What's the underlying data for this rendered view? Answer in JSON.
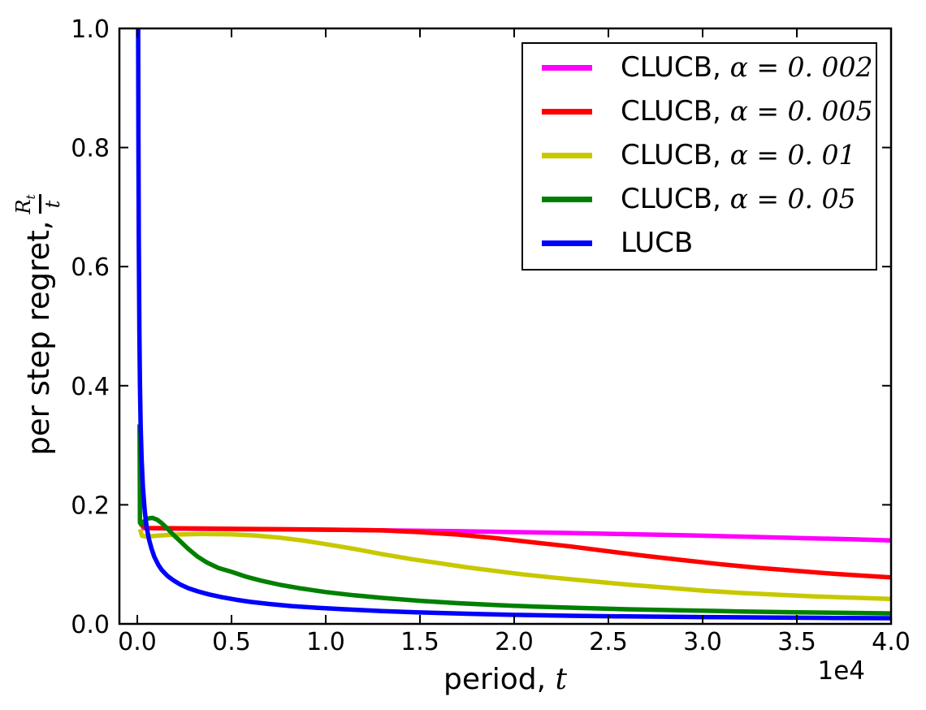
{
  "figure": {
    "background": "#ffffff",
    "frame_color": "#000000"
  },
  "chart_data": {
    "type": "line",
    "title": "",
    "xlabel": {
      "plain": "period, ",
      "math": "t"
    },
    "ylabel": {
      "plain": "per step regret, ",
      "frac_num": "R",
      "frac_num_sub": "t",
      "frac_den": "t"
    },
    "x_offset_text": "1e4",
    "x_units": "1e4",
    "xlim": [
      -0.095,
      4.0
    ],
    "ylim": [
      0,
      1
    ],
    "grid": false,
    "x_ticks": {
      "values": [
        0.0,
        0.5,
        1.0,
        1.5,
        2.0,
        2.5,
        3.0,
        3.5,
        4.0
      ],
      "labels": [
        "0.0",
        "0.5",
        "1.0",
        "1.5",
        "2.0",
        "2.5",
        "3.0",
        "3.5",
        "4.0"
      ]
    },
    "y_ticks": {
      "values": [
        0.0,
        0.2,
        0.4,
        0.6,
        0.8,
        1.0
      ],
      "labels": [
        "0.0",
        "0.2",
        "0.4",
        "0.6",
        "0.8",
        "1.0"
      ]
    },
    "legend": {
      "position": "upper right",
      "border_color": "#000000"
    },
    "series": [
      {
        "label_plain": "CLUCB, ",
        "label_math": "α = 0. 002",
        "color": "#ff00ff",
        "points": [
          [
            0.02,
            0.161
          ],
          [
            0.2,
            0.16
          ],
          [
            0.5,
            0.159
          ],
          [
            0.8,
            0.1585
          ],
          [
            1.1,
            0.1578
          ],
          [
            1.4,
            0.1568
          ],
          [
            1.7,
            0.1556
          ],
          [
            2.0,
            0.1542
          ],
          [
            2.3,
            0.1526
          ],
          [
            2.6,
            0.1508
          ],
          [
            2.9,
            0.1488
          ],
          [
            3.2,
            0.1466
          ],
          [
            3.5,
            0.1443
          ],
          [
            3.8,
            0.142
          ],
          [
            4.0,
            0.1403
          ]
        ]
      },
      {
        "label_plain": "CLUCB, ",
        "label_math": "α = 0. 005",
        "color": "#ff0000",
        "points": [
          [
            0.02,
            0.166
          ],
          [
            0.05,
            0.161
          ],
          [
            0.4,
            0.16
          ],
          [
            0.8,
            0.159
          ],
          [
            1.1,
            0.158
          ],
          [
            1.3,
            0.157
          ],
          [
            1.5,
            0.154
          ],
          [
            1.7,
            0.15
          ],
          [
            1.9,
            0.144
          ],
          [
            2.1,
            0.137
          ],
          [
            2.3,
            0.13
          ],
          [
            2.5,
            0.122
          ],
          [
            2.7,
            0.114
          ],
          [
            2.9,
            0.107
          ],
          [
            3.1,
            0.1
          ],
          [
            3.3,
            0.094
          ],
          [
            3.5,
            0.089
          ],
          [
            3.7,
            0.084
          ],
          [
            3.85,
            0.081
          ],
          [
            4.0,
            0.078
          ]
        ]
      },
      {
        "label_plain": "CLUCB, ",
        "label_math": "α = 0. 01",
        "color": "#c8c800",
        "points": [
          [
            0.015,
            0.159
          ],
          [
            0.025,
            0.148
          ],
          [
            0.05,
            0.1465
          ],
          [
            0.1,
            0.148
          ],
          [
            0.2,
            0.15
          ],
          [
            0.35,
            0.151
          ],
          [
            0.5,
            0.1505
          ],
          [
            0.62,
            0.1485
          ],
          [
            0.75,
            0.145
          ],
          [
            0.88,
            0.14
          ],
          [
            1.0,
            0.134
          ],
          [
            1.15,
            0.126
          ],
          [
            1.3,
            0.117
          ],
          [
            1.45,
            0.109
          ],
          [
            1.6,
            0.102
          ],
          [
            1.75,
            0.095
          ],
          [
            1.9,
            0.089
          ],
          [
            2.05,
            0.083
          ],
          [
            2.2,
            0.078
          ],
          [
            2.4,
            0.072
          ],
          [
            2.6,
            0.066
          ],
          [
            2.8,
            0.061
          ],
          [
            3.0,
            0.056
          ],
          [
            3.2,
            0.052
          ],
          [
            3.4,
            0.049
          ],
          [
            3.6,
            0.046
          ],
          [
            3.8,
            0.044
          ],
          [
            4.0,
            0.042
          ]
        ]
      },
      {
        "label_plain": "CLUCB, ",
        "label_math": "α = 0. 05",
        "color": "#008000",
        "points": [
          [
            0.012,
            0.335
          ],
          [
            0.013,
            0.25
          ],
          [
            0.014,
            0.17
          ],
          [
            0.02,
            0.167
          ],
          [
            0.035,
            0.172
          ],
          [
            0.055,
            0.177
          ],
          [
            0.08,
            0.178
          ],
          [
            0.105,
            0.175
          ],
          [
            0.13,
            0.169
          ],
          [
            0.16,
            0.16
          ],
          [
            0.19,
            0.15
          ],
          [
            0.23,
            0.138
          ],
          [
            0.27,
            0.126
          ],
          [
            0.32,
            0.113
          ],
          [
            0.37,
            0.103
          ],
          [
            0.43,
            0.094
          ],
          [
            0.5,
            0.0875
          ],
          [
            0.58,
            0.079
          ],
          [
            0.66,
            0.0725
          ],
          [
            0.76,
            0.0655
          ],
          [
            0.87,
            0.0595
          ],
          [
            1.0,
            0.0535
          ],
          [
            1.15,
            0.048
          ],
          [
            1.3,
            0.0437
          ],
          [
            1.5,
            0.0388
          ],
          [
            1.7,
            0.0348
          ],
          [
            1.9,
            0.0317
          ],
          [
            2.1,
            0.0292
          ],
          [
            2.35,
            0.0267
          ],
          [
            2.6,
            0.0246
          ],
          [
            2.9,
            0.0226
          ],
          [
            3.2,
            0.0209
          ],
          [
            3.5,
            0.0195
          ],
          [
            3.75,
            0.0185
          ],
          [
            4.0,
            0.0176
          ]
        ]
      },
      {
        "label_plain": "LUCB",
        "label_math": "",
        "color": "#0000ff",
        "points": [
          [
            0.004,
            1.05
          ],
          [
            0.006,
            0.82
          ],
          [
            0.008,
            0.64
          ],
          [
            0.011,
            0.49
          ],
          [
            0.014,
            0.4
          ],
          [
            0.018,
            0.33
          ],
          [
            0.023,
            0.275
          ],
          [
            0.03,
            0.228
          ],
          [
            0.04,
            0.188
          ],
          [
            0.05,
            0.162
          ],
          [
            0.062,
            0.142
          ],
          [
            0.075,
            0.127
          ],
          [
            0.09,
            0.113
          ],
          [
            0.11,
            0.1
          ],
          [
            0.13,
            0.0905
          ],
          [
            0.16,
            0.0805
          ],
          [
            0.19,
            0.0735
          ],
          [
            0.23,
            0.0658
          ],
          [
            0.27,
            0.06
          ],
          [
            0.32,
            0.0547
          ],
          [
            0.38,
            0.0495
          ],
          [
            0.45,
            0.0447
          ],
          [
            0.52,
            0.0408
          ],
          [
            0.6,
            0.037
          ],
          [
            0.7,
            0.0334
          ],
          [
            0.82,
            0.0299
          ],
          [
            0.95,
            0.0272
          ],
          [
            1.1,
            0.0245
          ],
          [
            1.3,
            0.0215
          ],
          [
            1.5,
            0.0192
          ],
          [
            1.75,
            0.017
          ],
          [
            2.0,
            0.0152
          ],
          [
            2.3,
            0.0137
          ],
          [
            2.6,
            0.0126
          ],
          [
            3.0,
            0.0114
          ],
          [
            3.4,
            0.0106
          ],
          [
            3.7,
            0.01
          ],
          [
            4.0,
            0.0095
          ]
        ]
      }
    ]
  }
}
